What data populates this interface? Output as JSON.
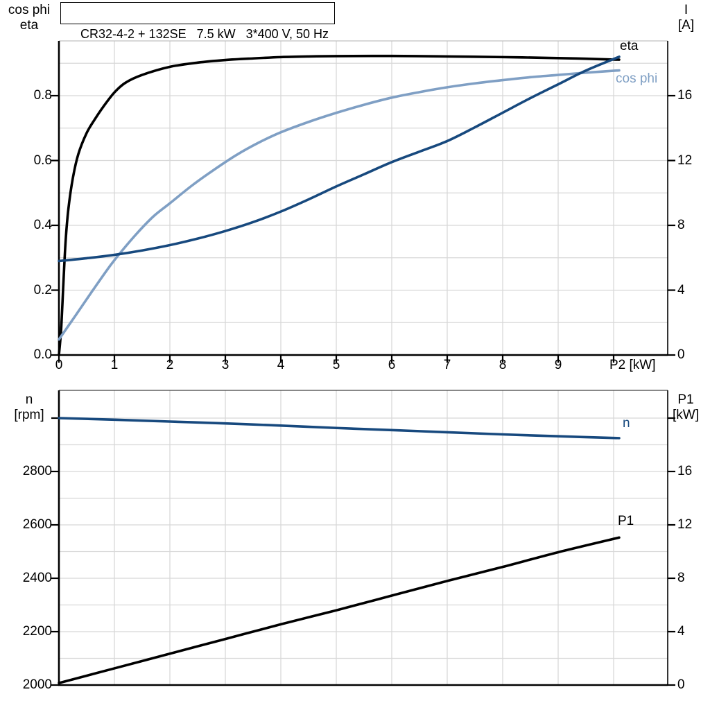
{
  "title": "CR32-4-2 + 132SE   7.5 kW   3*400 V, 50 Hz",
  "colors": {
    "eta": "#000000",
    "cos_phi": "#7F9FC4",
    "current": "#17497E",
    "n": "#17497E",
    "p1": "#000000",
    "grid": "#D8D8D8",
    "axis": "#000000",
    "frame_top_1": "#C0C0C0",
    "frame_top_2": "#404040"
  },
  "axis_titles": {
    "top_left_line1": "cos phi",
    "top_left_line2": "eta",
    "top_right_line1": "I",
    "top_right_line2": "[A]",
    "bottom_left_line1": "n",
    "bottom_left_line2": "[rpm]",
    "bottom_right_line1": "P1",
    "bottom_right_line2": "[kW]",
    "x_label": "P2 [kW]"
  },
  "curve_labels": {
    "eta": "eta",
    "cos_phi": "cos phi",
    "n": "n",
    "p1": "P1"
  },
  "chart_data": [
    {
      "type": "line",
      "title": "CR32-4-2 + 132SE 7.5 kW 3*400 V, 50 Hz",
      "xlabel": "P2 [kW]",
      "x_range": [
        0,
        11
      ],
      "x_tick_values": [
        0,
        1,
        2,
        3,
        4,
        5,
        6,
        7,
        8,
        9,
        10
      ],
      "x_tick_labels": [
        "0",
        "1",
        "2",
        "3",
        "4",
        "5",
        "6",
        "7",
        "8",
        "9",
        ""
      ],
      "grid": "on",
      "legend_position": "right-inline",
      "left_axis": {
        "title": "cos phi / eta",
        "range": [
          0,
          0.97
        ],
        "tick_values": [
          0,
          0.2,
          0.4,
          0.6,
          0.8
        ],
        "tick_labels": [
          "0.0",
          "0.2",
          "0.4",
          "0.6",
          "0.8"
        ],
        "minor_grid_step": 0.1
      },
      "right_axis": {
        "title": "I [A]",
        "range": [
          0,
          19.4
        ],
        "tick_values": [
          0,
          4,
          8,
          12,
          16
        ],
        "tick_labels": [
          "0",
          "4",
          "8",
          "12",
          "16"
        ],
        "minor_grid_step": 2
      },
      "series": [
        {
          "name": "eta",
          "axis": "left",
          "color": "#000000",
          "points": [
            [
              0,
              0
            ],
            [
              0.04,
              0.08
            ],
            [
              0.08,
              0.22
            ],
            [
              0.12,
              0.35
            ],
            [
              0.17,
              0.45
            ],
            [
              0.25,
              0.545
            ],
            [
              0.35,
              0.62
            ],
            [
              0.5,
              0.685
            ],
            [
              0.65,
              0.728
            ],
            [
              0.8,
              0.766
            ],
            [
              1,
              0.81
            ],
            [
              1.2,
              0.84
            ],
            [
              1.5,
              0.864
            ],
            [
              2,
              0.889
            ],
            [
              2.5,
              0.902
            ],
            [
              3,
              0.91
            ],
            [
              3.5,
              0.915
            ],
            [
              4,
              0.919
            ],
            [
              4.5,
              0.921
            ],
            [
              5,
              0.922
            ],
            [
              6,
              0.9225
            ],
            [
              7,
              0.921
            ],
            [
              8,
              0.919
            ],
            [
              9,
              0.916
            ],
            [
              9.5,
              0.914
            ],
            [
              10.1,
              0.911
            ]
          ]
        },
        {
          "name": "cos phi",
          "axis": "left",
          "color": "#7F9FC4",
          "points": [
            [
              0,
              0.048
            ],
            [
              0.3,
              0.122
            ],
            [
              0.6,
              0.197
            ],
            [
              0.9,
              0.27
            ],
            [
              1.1,
              0.314
            ],
            [
              1.4,
              0.374
            ],
            [
              1.7,
              0.427
            ],
            [
              2,
              0.468
            ],
            [
              2.4,
              0.523
            ],
            [
              2.8,
              0.572
            ],
            [
              3.2,
              0.617
            ],
            [
              3.6,
              0.655
            ],
            [
              4,
              0.687
            ],
            [
              4.5,
              0.719
            ],
            [
              5,
              0.747
            ],
            [
              5.5,
              0.772
            ],
            [
              6,
              0.794
            ],
            [
              6.5,
              0.811
            ],
            [
              7,
              0.826
            ],
            [
              7.5,
              0.838
            ],
            [
              8,
              0.848
            ],
            [
              8.5,
              0.857
            ],
            [
              9,
              0.864
            ],
            [
              9.5,
              0.871
            ],
            [
              10.1,
              0.878
            ]
          ]
        },
        {
          "name": "I",
          "axis": "right",
          "color": "#17497E",
          "points": [
            [
              0,
              5.8
            ],
            [
              0.5,
              5.97
            ],
            [
              1,
              6.18
            ],
            [
              1.5,
              6.45
            ],
            [
              2,
              6.78
            ],
            [
              2.5,
              7.18
            ],
            [
              3,
              7.65
            ],
            [
              3.5,
              8.2
            ],
            [
              4,
              8.85
            ],
            [
              4.5,
              9.6
            ],
            [
              5,
              10.4
            ],
            [
              5.5,
              11.15
            ],
            [
              6,
              11.9
            ],
            [
              6.5,
              12.55
            ],
            [
              7,
              13.2
            ],
            [
              7.5,
              14.05
            ],
            [
              8,
              14.95
            ],
            [
              8.5,
              15.85
            ],
            [
              9,
              16.7
            ],
            [
              9.5,
              17.55
            ],
            [
              10.1,
              18.4
            ]
          ]
        }
      ]
    },
    {
      "type": "line",
      "title": "",
      "xlabel": "",
      "x_range": [
        0,
        11
      ],
      "x_tick_values": [],
      "x_tick_labels": [],
      "grid": "on",
      "left_axis": {
        "title": "n [rpm]",
        "range": [
          2000,
          3104
        ],
        "tick_values": [
          2000,
          2200,
          2400,
          2600,
          2800,
          3000
        ],
        "tick_labels": [
          "2000",
          "2200",
          "2400",
          "2600",
          "2800",
          ""
        ],
        "minor_grid_step": 100
      },
      "right_axis": {
        "title": "P1 [kW]",
        "range": [
          0,
          22.1
        ],
        "tick_values": [
          0,
          4,
          8,
          12,
          16,
          20
        ],
        "tick_labels": [
          "0",
          "4",
          "8",
          "12",
          "16",
          ""
        ],
        "minor_grid_step": 2
      },
      "series": [
        {
          "name": "n",
          "axis": "left",
          "color": "#17497E",
          "points": [
            [
              0,
              3000
            ],
            [
              1,
              2994
            ],
            [
              2,
              2987
            ],
            [
              3,
              2980
            ],
            [
              4,
              2972
            ],
            [
              5,
              2963
            ],
            [
              6,
              2955
            ],
            [
              7,
              2947
            ],
            [
              8,
              2939
            ],
            [
              9,
              2932
            ],
            [
              10.1,
              2925
            ]
          ]
        },
        {
          "name": "P1",
          "axis": "right",
          "color": "#000000",
          "points": [
            [
              0,
              0.15
            ],
            [
              1,
              1.25
            ],
            [
              2,
              2.35
            ],
            [
              3,
              3.45
            ],
            [
              4,
              4.55
            ],
            [
              5,
              5.6
            ],
            [
              6,
              6.7
            ],
            [
              7,
              7.8
            ],
            [
              8,
              8.85
            ],
            [
              9,
              9.95
            ],
            [
              10.1,
              11.05
            ]
          ]
        }
      ]
    }
  ]
}
